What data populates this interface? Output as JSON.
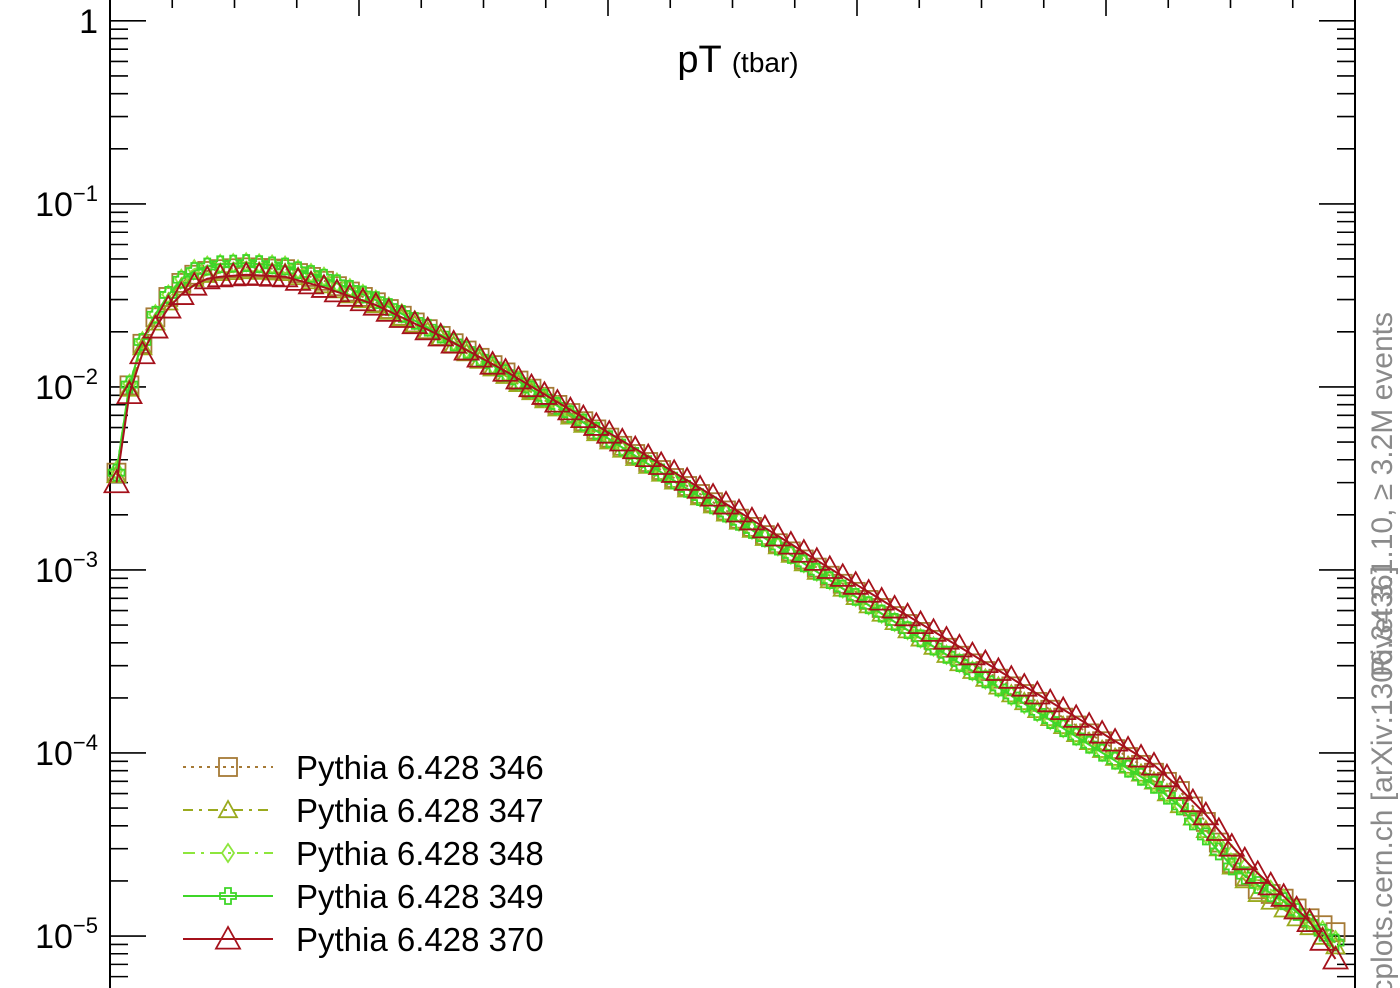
{
  "chart_data": {
    "type": "line",
    "title": "pT",
    "title_suffix": "(tbar)",
    "xlabel": "",
    "ylabel": "",
    "y_scale": "log",
    "ylim": [
      5.2e-06,
      1.3
    ],
    "yticks": [
      {
        "value": 1,
        "base": "1",
        "exp": ""
      },
      {
        "value": 0.1,
        "base": "10",
        "exp": "−1"
      },
      {
        "value": 0.01,
        "base": "10",
        "exp": "−2"
      },
      {
        "value": 0.001,
        "base": "10",
        "exp": "−3"
      },
      {
        "value": 0.0001,
        "base": "10",
        "exp": "−4"
      },
      {
        "value": 1e-05,
        "base": "10",
        "exp": "−5"
      }
    ],
    "x_tick_labels": [],
    "legend_position": "bottom-left",
    "series": [
      {
        "name": "Pythia 6.428 346",
        "color": "#a67a36",
        "marker": "square",
        "dash": "3,5",
        "anchors": [
          [
            0,
            0.0034
          ],
          [
            1,
            0.0102
          ],
          [
            2,
            0.0172
          ],
          [
            3,
            0.024
          ],
          [
            4,
            0.031
          ],
          [
            5,
            0.037
          ],
          [
            6,
            0.041
          ],
          [
            7,
            0.043
          ],
          [
            8,
            0.044
          ],
          [
            10,
            0.045
          ],
          [
            13,
            0.044
          ],
          [
            16,
            0.038
          ],
          [
            20,
            0.029
          ],
          [
            25,
            0.019
          ],
          [
            30,
            0.012
          ],
          [
            35,
            0.0072
          ],
          [
            40,
            0.0043
          ],
          [
            45,
            0.0026
          ],
          [
            50,
            0.00155
          ],
          [
            55,
            0.00093
          ],
          [
            60,
            0.00056
          ],
          [
            65,
            0.00034
          ],
          [
            70,
            0.00021
          ],
          [
            75,
            0.000128
          ],
          [
            80,
            7.8e-05
          ],
          [
            82,
            6.2e-05
          ],
          [
            84,
            4.2e-05
          ],
          [
            86,
            2.5e-05
          ],
          [
            88,
            1.8e-05
          ],
          [
            90,
            1.6e-05
          ],
          [
            92,
            1.25e-05
          ],
          [
            94,
            1.05e-05
          ]
        ]
      },
      {
        "name": "Pythia 6.428 347",
        "color": "#9aaa1e",
        "marker": "triangle",
        "dash": "10,6,3,6",
        "anchors": [
          [
            0,
            0.0033
          ],
          [
            1,
            0.0098
          ],
          [
            2,
            0.0165
          ],
          [
            3,
            0.0225
          ],
          [
            4,
            0.029
          ],
          [
            5,
            0.035
          ],
          [
            6,
            0.039
          ],
          [
            7,
            0.041
          ],
          [
            8,
            0.042
          ],
          [
            10,
            0.043
          ],
          [
            13,
            0.042
          ],
          [
            16,
            0.036
          ],
          [
            20,
            0.028
          ],
          [
            25,
            0.0185
          ],
          [
            30,
            0.0115
          ],
          [
            35,
            0.0069
          ],
          [
            40,
            0.0041
          ],
          [
            45,
            0.0025
          ],
          [
            50,
            0.0015
          ],
          [
            55,
            0.00088
          ],
          [
            60,
            0.00052
          ],
          [
            65,
            0.00031
          ],
          [
            70,
            0.00019
          ],
          [
            75,
            0.000115
          ],
          [
            80,
            7e-05
          ],
          [
            82,
            5.2e-05
          ],
          [
            84,
            3.8e-05
          ],
          [
            86,
            2.4e-05
          ],
          [
            88,
            1.7e-05
          ],
          [
            90,
            1.4e-05
          ],
          [
            92,
            1.12e-05
          ],
          [
            94,
            8.8e-06
          ]
        ]
      },
      {
        "name": "Pythia 6.428 348",
        "color": "#8de63c",
        "marker": "diamond",
        "dash": "12,6,3,6",
        "anchors": [
          [
            0,
            0.0035
          ],
          [
            1,
            0.0104
          ],
          [
            2,
            0.0178
          ],
          [
            3,
            0.025
          ],
          [
            4,
            0.032
          ],
          [
            5,
            0.039
          ],
          [
            6,
            0.044
          ],
          [
            7,
            0.046
          ],
          [
            8,
            0.047
          ],
          [
            10,
            0.048
          ],
          [
            13,
            0.046
          ],
          [
            16,
            0.04
          ],
          [
            20,
            0.03
          ],
          [
            25,
            0.0195
          ],
          [
            30,
            0.012
          ],
          [
            35,
            0.0071
          ],
          [
            40,
            0.0042
          ],
          [
            45,
            0.0025
          ],
          [
            50,
            0.0015
          ],
          [
            55,
            0.00088
          ],
          [
            60,
            0.00052
          ],
          [
            65,
            0.00031
          ],
          [
            70,
            0.000185
          ],
          [
            75,
            0.000112
          ],
          [
            80,
            6.8e-05
          ],
          [
            82,
            5.2e-05
          ],
          [
            84,
            3.6e-05
          ],
          [
            86,
            2.8e-05
          ],
          [
            88,
            2e-05
          ],
          [
            90,
            1.6e-05
          ],
          [
            92,
            1.22e-05
          ],
          [
            94,
            9.5e-06
          ]
        ]
      },
      {
        "name": "Pythia 6.428 349",
        "color": "#3ed628",
        "marker": "cross",
        "dash": "",
        "anchors": [
          [
            0,
            0.0034
          ],
          [
            1,
            0.0103
          ],
          [
            2,
            0.0176
          ],
          [
            3,
            0.0248
          ],
          [
            4,
            0.0318
          ],
          [
            5,
            0.0385
          ],
          [
            6,
            0.043
          ],
          [
            7,
            0.0455
          ],
          [
            8,
            0.0468
          ],
          [
            10,
            0.0475
          ],
          [
            13,
            0.0455
          ],
          [
            16,
            0.0395
          ],
          [
            20,
            0.0298
          ],
          [
            25,
            0.0193
          ],
          [
            30,
            0.0119
          ],
          [
            35,
            0.0071
          ],
          [
            40,
            0.0042
          ],
          [
            45,
            0.0025
          ],
          [
            50,
            0.00149
          ],
          [
            55,
            0.00088
          ],
          [
            60,
            0.00052
          ],
          [
            65,
            0.00031
          ],
          [
            70,
            0.000186
          ],
          [
            75,
            0.000111
          ],
          [
            80,
            6.7e-05
          ],
          [
            82,
            5.1e-05
          ],
          [
            84,
            3.5e-05
          ],
          [
            86,
            2.4e-05
          ],
          [
            88,
            1.9e-05
          ],
          [
            90,
            1.55e-05
          ],
          [
            92,
            1.18e-05
          ],
          [
            94,
            9.2e-06
          ]
        ]
      },
      {
        "name": "Pythia 6.428 370",
        "color": "#a5111b",
        "marker": "triangle-big",
        "dash": "",
        "anchors": [
          [
            0,
            0.003
          ],
          [
            1,
            0.0092
          ],
          [
            2,
            0.0152
          ],
          [
            3,
            0.021
          ],
          [
            4,
            0.027
          ],
          [
            5,
            0.032
          ],
          [
            6,
            0.036
          ],
          [
            7,
            0.039
          ],
          [
            8,
            0.04
          ],
          [
            10,
            0.041
          ],
          [
            13,
            0.04
          ],
          [
            16,
            0.035
          ],
          [
            20,
            0.028
          ],
          [
            25,
            0.019
          ],
          [
            30,
            0.0122
          ],
          [
            35,
            0.0075
          ],
          [
            40,
            0.0046
          ],
          [
            45,
            0.0028
          ],
          [
            50,
            0.0017
          ],
          [
            55,
            0.00102
          ],
          [
            60,
            0.00062
          ],
          [
            65,
            0.00038
          ],
          [
            70,
            0.000232
          ],
          [
            75,
            0.000142
          ],
          [
            80,
            8.6e-05
          ],
          [
            82,
            6.4e-05
          ],
          [
            84,
            4.6e-05
          ],
          [
            86,
            3.1e-05
          ],
          [
            88,
            2.2e-05
          ],
          [
            90,
            1.65e-05
          ],
          [
            92,
            1.2e-05
          ],
          [
            94,
            7.5e-06
          ]
        ]
      }
    ]
  },
  "side_note_top": "Rivet 3.1.10, ≥ 3.2M events",
  "side_note_bottom": "mcplots.cern.ch [arXiv:1306.3436]"
}
